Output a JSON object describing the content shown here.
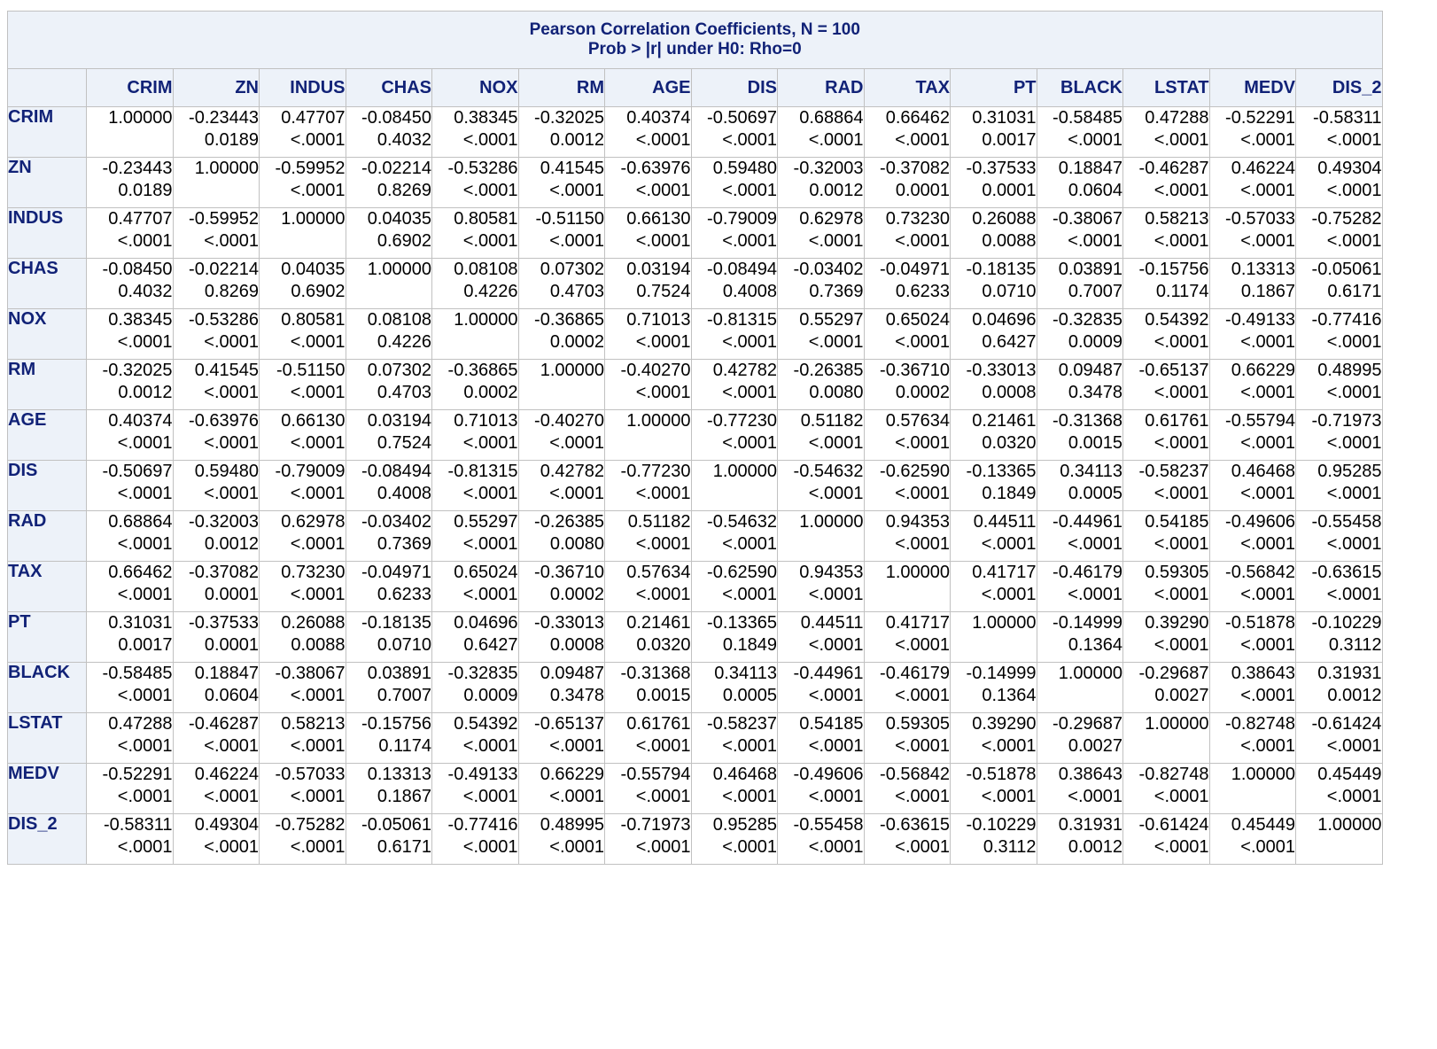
{
  "title_line1": "Pearson Correlation Coefficients, N = 100",
  "title_line2": "Prob > |r| under H0: Rho=0",
  "columns": [
    "CRIM",
    "ZN",
    "INDUS",
    "CHAS",
    "NOX",
    "RM",
    "AGE",
    "DIS",
    "RAD",
    "TAX",
    "PT",
    "BLACK",
    "LSTAT",
    "MEDV",
    "DIS_2"
  ],
  "rows": [
    {
      "name": "CRIM",
      "cells": [
        [
          "1.00000",
          ""
        ],
        [
          "-0.23443",
          "0.0189"
        ],
        [
          "0.47707",
          "<.0001"
        ],
        [
          "-0.08450",
          "0.4032"
        ],
        [
          "0.38345",
          "<.0001"
        ],
        [
          "-0.32025",
          "0.0012"
        ],
        [
          "0.40374",
          "<.0001"
        ],
        [
          "-0.50697",
          "<.0001"
        ],
        [
          "0.68864",
          "<.0001"
        ],
        [
          "0.66462",
          "<.0001"
        ],
        [
          "0.31031",
          "0.0017"
        ],
        [
          "-0.58485",
          "<.0001"
        ],
        [
          "0.47288",
          "<.0001"
        ],
        [
          "-0.52291",
          "<.0001"
        ],
        [
          "-0.58311",
          "<.0001"
        ]
      ]
    },
    {
      "name": "ZN",
      "cells": [
        [
          "-0.23443",
          "0.0189"
        ],
        [
          "1.00000",
          ""
        ],
        [
          "-0.59952",
          "<.0001"
        ],
        [
          "-0.02214",
          "0.8269"
        ],
        [
          "-0.53286",
          "<.0001"
        ],
        [
          "0.41545",
          "<.0001"
        ],
        [
          "-0.63976",
          "<.0001"
        ],
        [
          "0.59480",
          "<.0001"
        ],
        [
          "-0.32003",
          "0.0012"
        ],
        [
          "-0.37082",
          "0.0001"
        ],
        [
          "-0.37533",
          "0.0001"
        ],
        [
          "0.18847",
          "0.0604"
        ],
        [
          "-0.46287",
          "<.0001"
        ],
        [
          "0.46224",
          "<.0001"
        ],
        [
          "0.49304",
          "<.0001"
        ]
      ]
    },
    {
      "name": "INDUS",
      "cells": [
        [
          "0.47707",
          "<.0001"
        ],
        [
          "-0.59952",
          "<.0001"
        ],
        [
          "1.00000",
          ""
        ],
        [
          "0.04035",
          "0.6902"
        ],
        [
          "0.80581",
          "<.0001"
        ],
        [
          "-0.51150",
          "<.0001"
        ],
        [
          "0.66130",
          "<.0001"
        ],
        [
          "-0.79009",
          "<.0001"
        ],
        [
          "0.62978",
          "<.0001"
        ],
        [
          "0.73230",
          "<.0001"
        ],
        [
          "0.26088",
          "0.0088"
        ],
        [
          "-0.38067",
          "<.0001"
        ],
        [
          "0.58213",
          "<.0001"
        ],
        [
          "-0.57033",
          "<.0001"
        ],
        [
          "-0.75282",
          "<.0001"
        ]
      ]
    },
    {
      "name": "CHAS",
      "cells": [
        [
          "-0.08450",
          "0.4032"
        ],
        [
          "-0.02214",
          "0.8269"
        ],
        [
          "0.04035",
          "0.6902"
        ],
        [
          "1.00000",
          ""
        ],
        [
          "0.08108",
          "0.4226"
        ],
        [
          "0.07302",
          "0.4703"
        ],
        [
          "0.03194",
          "0.7524"
        ],
        [
          "-0.08494",
          "0.4008"
        ],
        [
          "-0.03402",
          "0.7369"
        ],
        [
          "-0.04971",
          "0.6233"
        ],
        [
          "-0.18135",
          "0.0710"
        ],
        [
          "0.03891",
          "0.7007"
        ],
        [
          "-0.15756",
          "0.1174"
        ],
        [
          "0.13313",
          "0.1867"
        ],
        [
          "-0.05061",
          "0.6171"
        ]
      ]
    },
    {
      "name": "NOX",
      "cells": [
        [
          "0.38345",
          "<.0001"
        ],
        [
          "-0.53286",
          "<.0001"
        ],
        [
          "0.80581",
          "<.0001"
        ],
        [
          "0.08108",
          "0.4226"
        ],
        [
          "1.00000",
          ""
        ],
        [
          "-0.36865",
          "0.0002"
        ],
        [
          "0.71013",
          "<.0001"
        ],
        [
          "-0.81315",
          "<.0001"
        ],
        [
          "0.55297",
          "<.0001"
        ],
        [
          "0.65024",
          "<.0001"
        ],
        [
          "0.04696",
          "0.6427"
        ],
        [
          "-0.32835",
          "0.0009"
        ],
        [
          "0.54392",
          "<.0001"
        ],
        [
          "-0.49133",
          "<.0001"
        ],
        [
          "-0.77416",
          "<.0001"
        ]
      ]
    },
    {
      "name": "RM",
      "cells": [
        [
          "-0.32025",
          "0.0012"
        ],
        [
          "0.41545",
          "<.0001"
        ],
        [
          "-0.51150",
          "<.0001"
        ],
        [
          "0.07302",
          "0.4703"
        ],
        [
          "-0.36865",
          "0.0002"
        ],
        [
          "1.00000",
          ""
        ],
        [
          "-0.40270",
          "<.0001"
        ],
        [
          "0.42782",
          "<.0001"
        ],
        [
          "-0.26385",
          "0.0080"
        ],
        [
          "-0.36710",
          "0.0002"
        ],
        [
          "-0.33013",
          "0.0008"
        ],
        [
          "0.09487",
          "0.3478"
        ],
        [
          "-0.65137",
          "<.0001"
        ],
        [
          "0.66229",
          "<.0001"
        ],
        [
          "0.48995",
          "<.0001"
        ]
      ]
    },
    {
      "name": "AGE",
      "cells": [
        [
          "0.40374",
          "<.0001"
        ],
        [
          "-0.63976",
          "<.0001"
        ],
        [
          "0.66130",
          "<.0001"
        ],
        [
          "0.03194",
          "0.7524"
        ],
        [
          "0.71013",
          "<.0001"
        ],
        [
          "-0.40270",
          "<.0001"
        ],
        [
          "1.00000",
          ""
        ],
        [
          "-0.77230",
          "<.0001"
        ],
        [
          "0.51182",
          "<.0001"
        ],
        [
          "0.57634",
          "<.0001"
        ],
        [
          "0.21461",
          "0.0320"
        ],
        [
          "-0.31368",
          "0.0015"
        ],
        [
          "0.61761",
          "<.0001"
        ],
        [
          "-0.55794",
          "<.0001"
        ],
        [
          "-0.71973",
          "<.0001"
        ]
      ]
    },
    {
      "name": "DIS",
      "cells": [
        [
          "-0.50697",
          "<.0001"
        ],
        [
          "0.59480",
          "<.0001"
        ],
        [
          "-0.79009",
          "<.0001"
        ],
        [
          "-0.08494",
          "0.4008"
        ],
        [
          "-0.81315",
          "<.0001"
        ],
        [
          "0.42782",
          "<.0001"
        ],
        [
          "-0.77230",
          "<.0001"
        ],
        [
          "1.00000",
          ""
        ],
        [
          "-0.54632",
          "<.0001"
        ],
        [
          "-0.62590",
          "<.0001"
        ],
        [
          "-0.13365",
          "0.1849"
        ],
        [
          "0.34113",
          "0.0005"
        ],
        [
          "-0.58237",
          "<.0001"
        ],
        [
          "0.46468",
          "<.0001"
        ],
        [
          "0.95285",
          "<.0001"
        ]
      ]
    },
    {
      "name": "RAD",
      "cells": [
        [
          "0.68864",
          "<.0001"
        ],
        [
          "-0.32003",
          "0.0012"
        ],
        [
          "0.62978",
          "<.0001"
        ],
        [
          "-0.03402",
          "0.7369"
        ],
        [
          "0.55297",
          "<.0001"
        ],
        [
          "-0.26385",
          "0.0080"
        ],
        [
          "0.51182",
          "<.0001"
        ],
        [
          "-0.54632",
          "<.0001"
        ],
        [
          "1.00000",
          ""
        ],
        [
          "0.94353",
          "<.0001"
        ],
        [
          "0.44511",
          "<.0001"
        ],
        [
          "-0.44961",
          "<.0001"
        ],
        [
          "0.54185",
          "<.0001"
        ],
        [
          "-0.49606",
          "<.0001"
        ],
        [
          "-0.55458",
          "<.0001"
        ]
      ]
    },
    {
      "name": "TAX",
      "cells": [
        [
          "0.66462",
          "<.0001"
        ],
        [
          "-0.37082",
          "0.0001"
        ],
        [
          "0.73230",
          "<.0001"
        ],
        [
          "-0.04971",
          "0.6233"
        ],
        [
          "0.65024",
          "<.0001"
        ],
        [
          "-0.36710",
          "0.0002"
        ],
        [
          "0.57634",
          "<.0001"
        ],
        [
          "-0.62590",
          "<.0001"
        ],
        [
          "0.94353",
          "<.0001"
        ],
        [
          "1.00000",
          ""
        ],
        [
          "0.41717",
          "<.0001"
        ],
        [
          "-0.46179",
          "<.0001"
        ],
        [
          "0.59305",
          "<.0001"
        ],
        [
          "-0.56842",
          "<.0001"
        ],
        [
          "-0.63615",
          "<.0001"
        ]
      ]
    },
    {
      "name": "PT",
      "cells": [
        [
          "0.31031",
          "0.0017"
        ],
        [
          "-0.37533",
          "0.0001"
        ],
        [
          "0.26088",
          "0.0088"
        ],
        [
          "-0.18135",
          "0.0710"
        ],
        [
          "0.04696",
          "0.6427"
        ],
        [
          "-0.33013",
          "0.0008"
        ],
        [
          "0.21461",
          "0.0320"
        ],
        [
          "-0.13365",
          "0.1849"
        ],
        [
          "0.44511",
          "<.0001"
        ],
        [
          "0.41717",
          "<.0001"
        ],
        [
          "1.00000",
          ""
        ],
        [
          "-0.14999",
          "0.1364"
        ],
        [
          "0.39290",
          "<.0001"
        ],
        [
          "-0.51878",
          "<.0001"
        ],
        [
          "-0.10229",
          "0.3112"
        ]
      ]
    },
    {
      "name": "BLACK",
      "cells": [
        [
          "-0.58485",
          "<.0001"
        ],
        [
          "0.18847",
          "0.0604"
        ],
        [
          "-0.38067",
          "<.0001"
        ],
        [
          "0.03891",
          "0.7007"
        ],
        [
          "-0.32835",
          "0.0009"
        ],
        [
          "0.09487",
          "0.3478"
        ],
        [
          "-0.31368",
          "0.0015"
        ],
        [
          "0.34113",
          "0.0005"
        ],
        [
          "-0.44961",
          "<.0001"
        ],
        [
          "-0.46179",
          "<.0001"
        ],
        [
          "-0.14999",
          "0.1364"
        ],
        [
          "1.00000",
          ""
        ],
        [
          "-0.29687",
          "0.0027"
        ],
        [
          "0.38643",
          "<.0001"
        ],
        [
          "0.31931",
          "0.0012"
        ]
      ]
    },
    {
      "name": "LSTAT",
      "cells": [
        [
          "0.47288",
          "<.0001"
        ],
        [
          "-0.46287",
          "<.0001"
        ],
        [
          "0.58213",
          "<.0001"
        ],
        [
          "-0.15756",
          "0.1174"
        ],
        [
          "0.54392",
          "<.0001"
        ],
        [
          "-0.65137",
          "<.0001"
        ],
        [
          "0.61761",
          "<.0001"
        ],
        [
          "-0.58237",
          "<.0001"
        ],
        [
          "0.54185",
          "<.0001"
        ],
        [
          "0.59305",
          "<.0001"
        ],
        [
          "0.39290",
          "<.0001"
        ],
        [
          "-0.29687",
          "0.0027"
        ],
        [
          "1.00000",
          ""
        ],
        [
          "-0.82748",
          "<.0001"
        ],
        [
          "-0.61424",
          "<.0001"
        ]
      ]
    },
    {
      "name": "MEDV",
      "cells": [
        [
          "-0.52291",
          "<.0001"
        ],
        [
          "0.46224",
          "<.0001"
        ],
        [
          "-0.57033",
          "<.0001"
        ],
        [
          "0.13313",
          "0.1867"
        ],
        [
          "-0.49133",
          "<.0001"
        ],
        [
          "0.66229",
          "<.0001"
        ],
        [
          "-0.55794",
          "<.0001"
        ],
        [
          "0.46468",
          "<.0001"
        ],
        [
          "-0.49606",
          "<.0001"
        ],
        [
          "-0.56842",
          "<.0001"
        ],
        [
          "-0.51878",
          "<.0001"
        ],
        [
          "0.38643",
          "<.0001"
        ],
        [
          "-0.82748",
          "<.0001"
        ],
        [
          "1.00000",
          ""
        ],
        [
          "0.45449",
          "<.0001"
        ]
      ]
    },
    {
      "name": "DIS_2",
      "cells": [
        [
          "-0.58311",
          "<.0001"
        ],
        [
          "0.49304",
          "<.0001"
        ],
        [
          "-0.75282",
          "<.0001"
        ],
        [
          "-0.05061",
          "0.6171"
        ],
        [
          "-0.77416",
          "<.0001"
        ],
        [
          "0.48995",
          "<.0001"
        ],
        [
          "-0.71973",
          "<.0001"
        ],
        [
          "0.95285",
          "<.0001"
        ],
        [
          "-0.55458",
          "<.0001"
        ],
        [
          "-0.63615",
          "<.0001"
        ],
        [
          "-0.10229",
          "0.3112"
        ],
        [
          "0.31931",
          "0.0012"
        ],
        [
          "-0.61424",
          "<.0001"
        ],
        [
          "0.45449",
          "<.0001"
        ],
        [
          "1.00000",
          ""
        ]
      ]
    }
  ]
}
